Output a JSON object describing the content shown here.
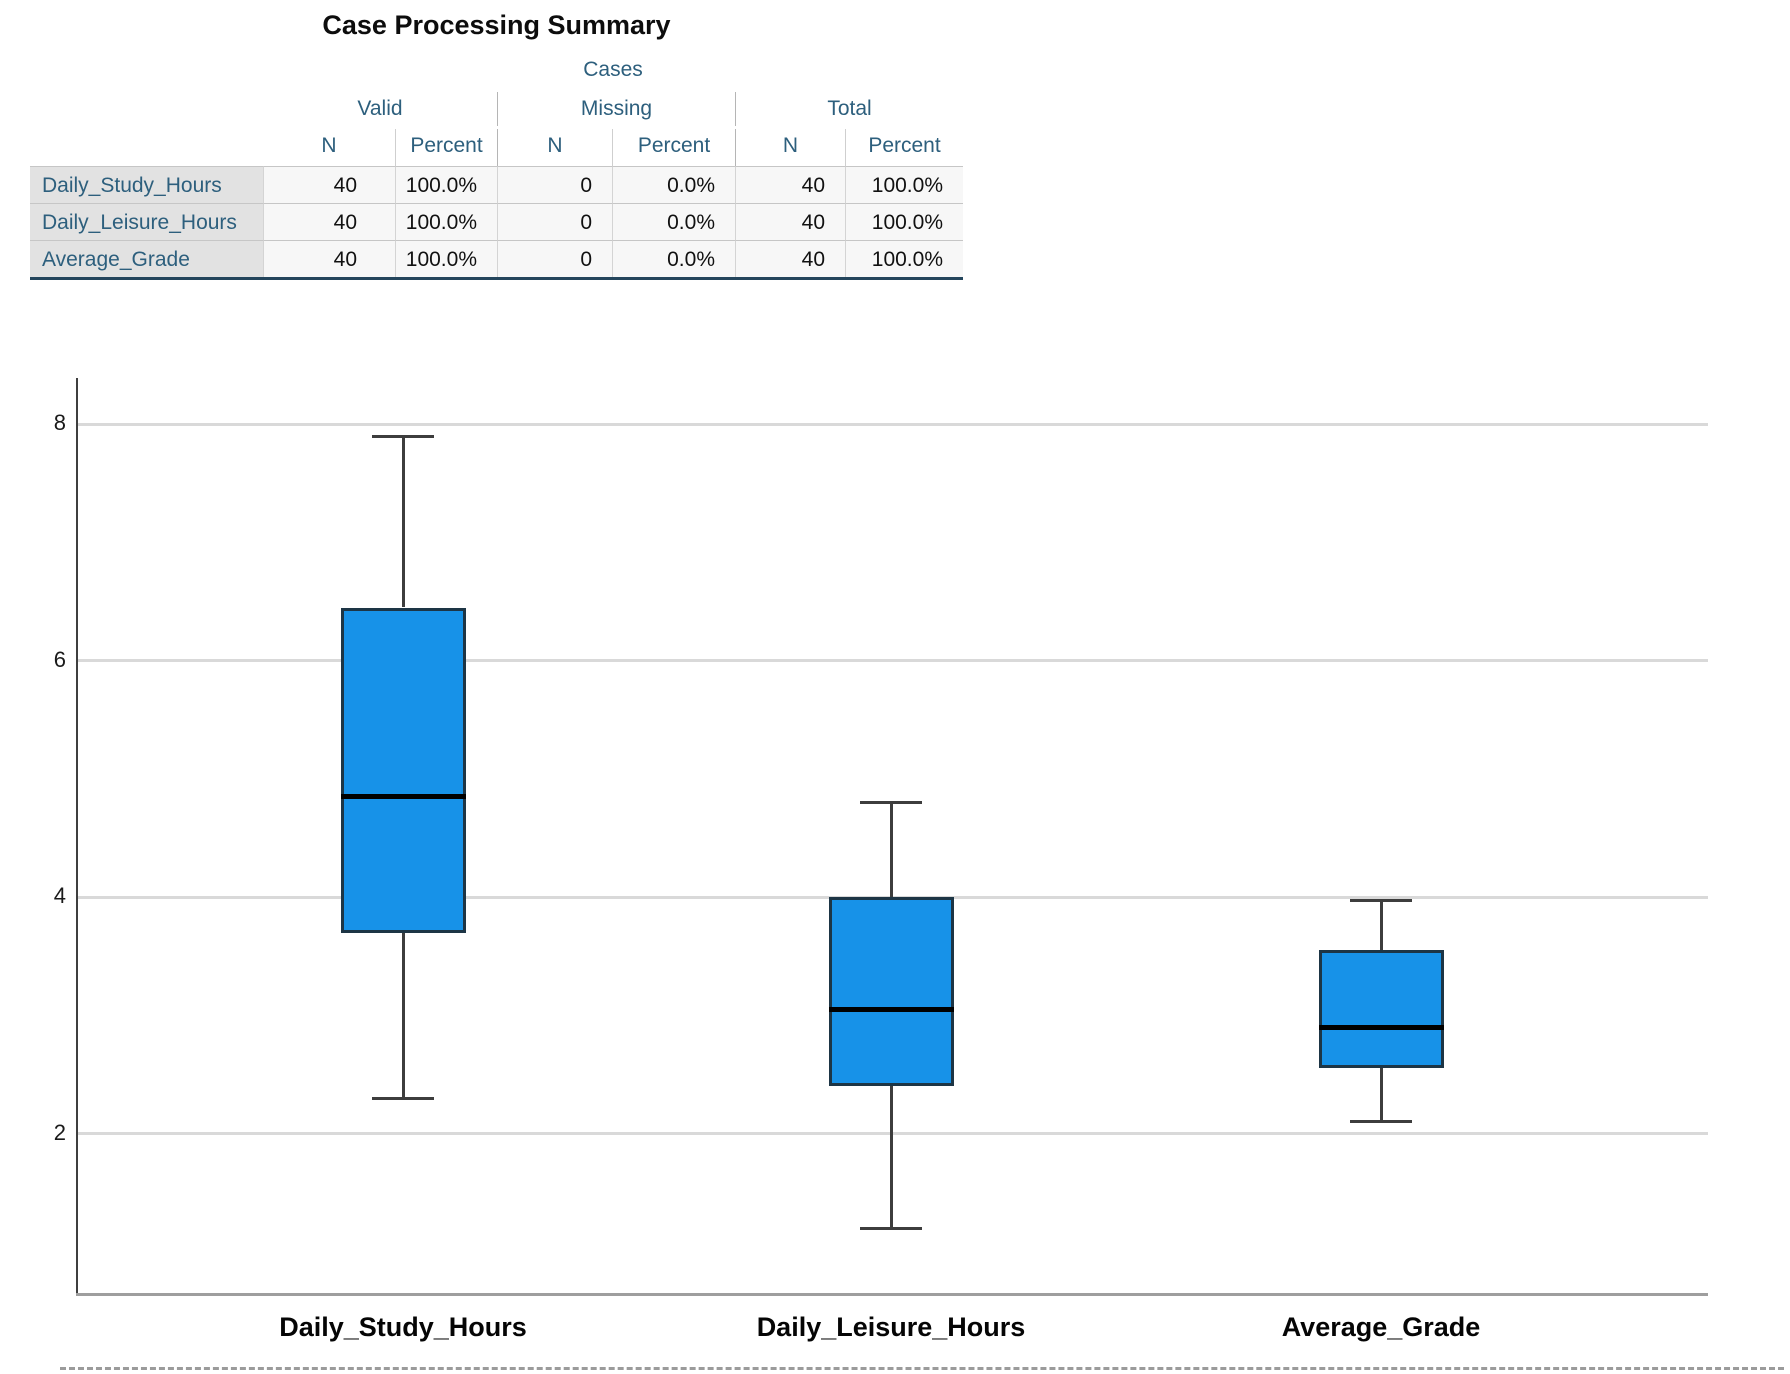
{
  "table": {
    "title": "Case Processing Summary",
    "spanner": "Cases",
    "col_groups": [
      {
        "label": "Valid"
      },
      {
        "label": "Missing"
      },
      {
        "label": "Total"
      }
    ],
    "sub_headers": [
      "N",
      "Percent",
      "N",
      "Percent",
      "N",
      "Percent"
    ],
    "rows": [
      {
        "label": "Daily_Study_Hours",
        "values": [
          "40",
          "100.0%",
          "0",
          "0.0%",
          "40",
          "100.0%"
        ]
      },
      {
        "label": "Daily_Leisure_Hours",
        "values": [
          "40",
          "100.0%",
          "0",
          "0.0%",
          "40",
          "100.0%"
        ]
      },
      {
        "label": "Average_Grade",
        "values": [
          "40",
          "100.0%",
          "0",
          "0.0%",
          "40",
          "100.0%"
        ]
      }
    ]
  },
  "chart_data": {
    "type": "boxplot",
    "title": "",
    "categories": [
      "Daily_Study_Hours",
      "Daily_Leisure_Hours",
      "Average_Grade"
    ],
    "series": [
      {
        "name": "Daily_Study_Hours",
        "whisker_low": 2.3,
        "q1": 3.7,
        "median": 4.85,
        "q3": 6.45,
        "whisker_high": 7.9
      },
      {
        "name": "Daily_Leisure_Hours",
        "whisker_low": 1.2,
        "q1": 2.4,
        "median": 3.05,
        "q3": 4.0,
        "whisker_high": 4.8
      },
      {
        "name": "Average_Grade",
        "whisker_low": 2.1,
        "q1": 2.55,
        "median": 2.9,
        "q3": 3.55,
        "whisker_high": 3.97
      }
    ],
    "yticks": [
      2,
      4,
      6,
      8
    ],
    "ylim": [
      0.6,
      8.4
    ],
    "grid": true,
    "legend": false,
    "colors": {
      "box_fill": "#1792e8",
      "box_border": "#1d3545",
      "median": "#000000",
      "whisker": "#3d3d3d",
      "gridline": "#d9d9d9",
      "axis": "#3f3f3f",
      "frame_bottom": "#9e9e9e"
    }
  },
  "theme": {
    "header_text": "#2d5f7d",
    "data_text": "#111111",
    "label_bg": "#e2e2e2",
    "cell_bg": "#f7f7f7",
    "rule_dark": "#24455c"
  }
}
